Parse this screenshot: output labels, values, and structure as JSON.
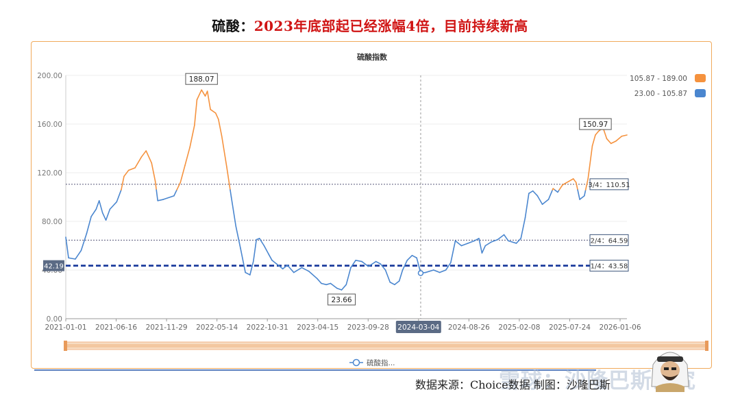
{
  "headline": {
    "prefix": "硫酸：",
    "main": "2023年底部起已经涨幅4倍，目前持续新高"
  },
  "source_text": "数据来源：Choice数据 制图：沙隆巴斯",
  "watermark_text": "雪球：沙隆巴斯研究",
  "chart_data": {
    "type": "line",
    "title": "硫酸指数",
    "legend": {
      "position": "top-right",
      "items": [
        {
          "label": "105.87 - 189.00",
          "color": "#f5923e"
        },
        {
          "label": "23.00 - 105.87",
          "color": "#4a86cf"
        }
      ]
    },
    "piece_threshold": 105.87,
    "x_tick_labels": [
      "2021-01-01",
      "2021-06-16",
      "2021-11-29",
      "2022-05-14",
      "2022-10-31",
      "2023-04-15",
      "2023-09-28",
      "2024-03-04",
      "2024-08-26",
      "2025-02-08",
      "2025-07-24",
      "2026-01-06"
    ],
    "x_range": [
      "2021-01-01",
      "2026-01-06"
    ],
    "y_ticks": [
      "0.00",
      "40.00",
      "80.00",
      "120.00",
      "160.00",
      "200.00"
    ],
    "ylim": [
      0,
      200
    ],
    "axis_pointer": {
      "date": "2024-03-04",
      "value": 37.5
    },
    "current_value_label": "42.19",
    "series": [
      {
        "name": "硫酸指数",
        "points": [
          [
            "2021-01-01",
            67
          ],
          [
            "2021-01-10",
            50
          ],
          [
            "2021-02-01",
            49
          ],
          [
            "2021-02-20",
            56
          ],
          [
            "2021-03-10",
            70
          ],
          [
            "2021-03-25",
            84
          ],
          [
            "2021-04-10",
            90
          ],
          [
            "2021-04-20",
            97
          ],
          [
            "2021-05-01",
            87
          ],
          [
            "2021-05-12",
            81
          ],
          [
            "2021-05-25",
            90
          ],
          [
            "2021-06-16",
            96
          ],
          [
            "2021-07-01",
            106
          ],
          [
            "2021-07-10",
            117
          ],
          [
            "2021-07-25",
            122
          ],
          [
            "2021-08-15",
            124
          ],
          [
            "2021-09-05",
            133
          ],
          [
            "2021-09-20",
            138
          ],
          [
            "2021-10-08",
            128
          ],
          [
            "2021-10-20",
            113
          ],
          [
            "2021-10-28",
            97
          ],
          [
            "2021-11-15",
            98
          ],
          [
            "2021-12-20",
            101
          ],
          [
            "2022-01-10",
            112
          ],
          [
            "2022-01-25",
            126
          ],
          [
            "2022-02-10",
            141
          ],
          [
            "2022-02-25",
            159
          ],
          [
            "2022-03-05",
            180
          ],
          [
            "2022-03-20",
            188.07
          ],
          [
            "2022-04-01",
            183
          ],
          [
            "2022-04-08",
            187
          ],
          [
            "2022-04-18",
            172
          ],
          [
            "2022-05-05",
            169
          ],
          [
            "2022-05-14",
            164
          ],
          [
            "2022-05-25",
            150
          ],
          [
            "2022-06-10",
            125
          ],
          [
            "2022-06-25",
            100
          ],
          [
            "2022-07-10",
            76
          ],
          [
            "2022-07-25",
            58
          ],
          [
            "2022-08-10",
            38
          ],
          [
            "2022-08-25",
            36
          ],
          [
            "2022-09-05",
            47
          ],
          [
            "2022-09-15",
            65
          ],
          [
            "2022-09-25",
            66
          ],
          [
            "2022-10-10",
            60
          ],
          [
            "2022-10-25",
            53
          ],
          [
            "2022-11-05",
            48
          ],
          [
            "2022-11-20",
            45
          ],
          [
            "2022-12-10",
            41
          ],
          [
            "2022-12-25",
            44
          ],
          [
            "2023-01-15",
            38
          ],
          [
            "2023-02-10",
            42
          ],
          [
            "2023-03-05",
            39
          ],
          [
            "2023-04-01",
            33
          ],
          [
            "2023-04-15",
            29
          ],
          [
            "2023-05-01",
            28
          ],
          [
            "2023-05-15",
            29
          ],
          [
            "2023-06-05",
            25
          ],
          [
            "2023-06-20",
            23.66
          ],
          [
            "2023-07-05",
            28
          ],
          [
            "2023-07-20",
            42
          ],
          [
            "2023-08-05",
            48
          ],
          [
            "2023-08-25",
            47
          ],
          [
            "2023-09-15",
            43
          ],
          [
            "2023-09-28",
            45
          ],
          [
            "2023-10-10",
            47
          ],
          [
            "2023-10-25",
            45
          ],
          [
            "2023-11-10",
            40
          ],
          [
            "2023-11-25",
            30
          ],
          [
            "2023-12-10",
            28
          ],
          [
            "2023-12-25",
            31
          ],
          [
            "2024-01-05",
            40
          ],
          [
            "2024-01-20",
            48
          ],
          [
            "2024-02-05",
            52
          ],
          [
            "2024-02-20",
            50
          ],
          [
            "2024-03-04",
            37.5
          ],
          [
            "2024-03-20",
            38
          ],
          [
            "2024-04-15",
            40
          ],
          [
            "2024-05-05",
            38
          ],
          [
            "2024-05-25",
            40
          ],
          [
            "2024-06-10",
            46
          ],
          [
            "2024-06-25",
            64
          ],
          [
            "2024-07-15",
            60
          ],
          [
            "2024-08-05",
            62
          ],
          [
            "2024-08-26",
            64
          ],
          [
            "2024-09-10",
            66
          ],
          [
            "2024-09-20",
            54
          ],
          [
            "2024-10-01",
            60
          ],
          [
            "2024-10-20",
            63
          ],
          [
            "2024-11-10",
            65
          ],
          [
            "2024-12-01",
            69
          ],
          [
            "2024-12-15",
            64
          ],
          [
            "2025-01-10",
            62
          ],
          [
            "2025-01-25",
            66
          ],
          [
            "2025-02-08",
            83
          ],
          [
            "2025-02-20",
            103
          ],
          [
            "2025-03-05",
            105
          ],
          [
            "2025-03-20",
            101
          ],
          [
            "2025-04-05",
            94
          ],
          [
            "2025-04-25",
            98
          ],
          [
            "2025-05-10",
            107
          ],
          [
            "2025-05-25",
            104
          ],
          [
            "2025-06-10",
            110
          ],
          [
            "2025-07-01",
            113
          ],
          [
            "2025-07-15",
            115
          ],
          [
            "2025-07-24",
            112
          ],
          [
            "2025-08-05",
            98
          ],
          [
            "2025-08-20",
            101
          ],
          [
            "2025-09-01",
            115
          ],
          [
            "2025-09-15",
            142
          ],
          [
            "2025-09-25",
            150.97
          ],
          [
            "2025-10-05",
            154
          ],
          [
            "2025-10-20",
            157
          ],
          [
            "2025-11-01",
            148
          ],
          [
            "2025-11-15",
            144
          ],
          [
            "2025-12-01",
            146
          ],
          [
            "2025-12-20",
            150
          ],
          [
            "2026-01-06",
            151
          ]
        ]
      }
    ],
    "reference_lines": [
      {
        "label": "3/4：110.51",
        "value": 110.51,
        "style": "thin-dotted"
      },
      {
        "label": "2/4：64.59",
        "value": 64.59,
        "style": "thin-dotted"
      },
      {
        "label": "1/4：43.58",
        "value": 43.58,
        "style": "thick-dashed"
      }
    ],
    "point_labels": [
      {
        "text": "188.07",
        "date": "2022-03-20",
        "value": 188.07
      },
      {
        "text": "150.97",
        "date": "2025-09-25",
        "value": 150.97
      },
      {
        "text": "23.66",
        "date": "2023-06-20",
        "value": 23.66
      }
    ],
    "slider_label": "硫酸指..."
  }
}
